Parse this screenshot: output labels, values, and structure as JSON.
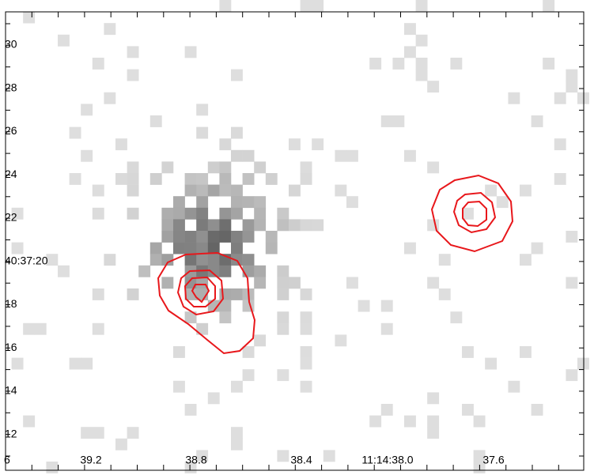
{
  "y_axis": {
    "labels": [
      "30",
      "28",
      "26",
      "24",
      "22",
      "40:37:20",
      "18",
      "16",
      "14",
      "12"
    ]
  },
  "x_axis": {
    "labels": [
      "6",
      "39.2",
      "38.8",
      "38.4",
      "11:14:38.0",
      "37.6"
    ]
  }
}
